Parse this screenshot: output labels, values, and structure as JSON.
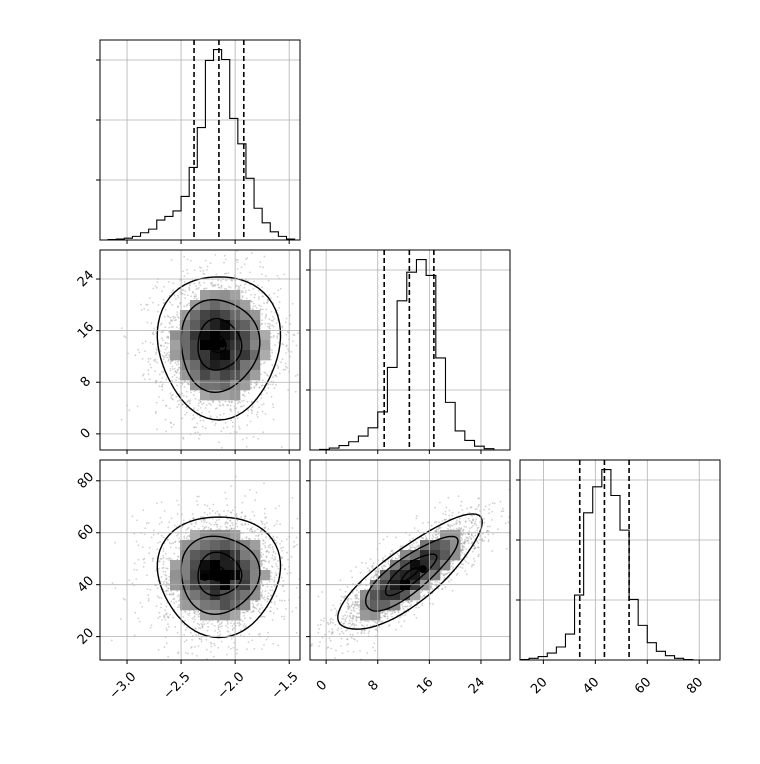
{
  "chart_data": {
    "type": "corner",
    "title": "",
    "grid": true,
    "dashed_lines": "quantiles",
    "parameters": [
      {
        "key": "p0",
        "label": "",
        "range": [
          -3.25,
          -1.4
        ],
        "ticks": [
          -3.0,
          -2.5,
          -2.0,
          -1.5
        ],
        "tick_labels": [
          "−3.0",
          "−2.5",
          "−2.0",
          "−1.5"
        ],
        "quantiles": [
          -2.38,
          -2.15,
          -1.92
        ],
        "histogram": {
          "edges": [
            -3.25,
            -3.175,
            -3.1,
            -3.025,
            -2.95,
            -2.875,
            -2.8,
            -2.725,
            -2.65,
            -2.575,
            -2.5,
            -2.425,
            -2.35,
            -2.275,
            -2.2,
            -2.125,
            -2.05,
            -1.975,
            -1.9,
            -1.825,
            -1.75,
            -1.675,
            -1.6,
            -1.525,
            -1.45
          ],
          "counts": [
            0,
            1,
            2,
            4,
            8,
            16,
            24,
            44,
            52,
            64,
            96,
            160,
            248,
            396,
            420,
            398,
            268,
            212,
            136,
            70,
            38,
            18,
            8,
            2
          ]
        }
      },
      {
        "key": "p1",
        "label": "",
        "range": [
          -2.5,
          28.5
        ],
        "ticks": [
          0,
          8,
          16,
          24
        ],
        "tick_labels": [
          "0",
          "8",
          "16",
          "24"
        ],
        "quantiles": [
          9.0,
          12.9,
          16.7
        ],
        "histogram": {
          "edges": [
            -1.0,
            0.5,
            2.0,
            3.5,
            5.0,
            6.5,
            8.0,
            9.5,
            11.0,
            12.5,
            14.0,
            15.5,
            17.0,
            18.5,
            20.0,
            21.5,
            23.0,
            24.5,
            26.0
          ],
          "counts": [
            2,
            6,
            14,
            26,
            44,
            70,
            120,
            260,
            470,
            560,
            600,
            550,
            290,
            150,
            60,
            30,
            12,
            4
          ]
        }
      },
      {
        "key": "p2",
        "label": "",
        "range": [
          11,
          88
        ],
        "ticks": [
          20,
          40,
          60,
          80
        ],
        "tick_labels": [
          "20",
          "40",
          "60",
          "80"
        ],
        "quantiles": [
          34.0,
          43.5,
          53.0
        ],
        "histogram": {
          "edges": [
            11,
            14.5,
            18,
            21.5,
            25,
            28.5,
            32,
            35.5,
            39,
            42.5,
            46,
            49.5,
            53,
            56.5,
            60,
            63.5,
            67,
            70.5,
            74,
            77.5
          ],
          "counts": [
            1,
            4,
            8,
            16,
            30,
            60,
            150,
            340,
            400,
            440,
            380,
            300,
            140,
            80,
            40,
            20,
            10,
            4,
            1
          ]
        }
      }
    ],
    "pairs": [
      {
        "x": "p0",
        "y": "p1",
        "center": [
          -2.15,
          13.8
        ],
        "spread": [
          0.28,
          5.5
        ],
        "correlation": 0.0,
        "density_peak": [
          -2.12,
          14.0
        ]
      },
      {
        "x": "p0",
        "y": "p2",
        "center": [
          -2.15,
          44.0
        ],
        "spread": [
          0.28,
          11.5
        ],
        "correlation": 0.0,
        "density_peak": [
          -2.28,
          43.0
        ]
      },
      {
        "x": "p1",
        "y": "p2",
        "center": [
          13.0,
          44.0
        ],
        "spread": [
          5.5,
          11.0
        ],
        "correlation": 0.82,
        "density_peak": [
          15.0,
          46.0
        ]
      }
    ]
  }
}
